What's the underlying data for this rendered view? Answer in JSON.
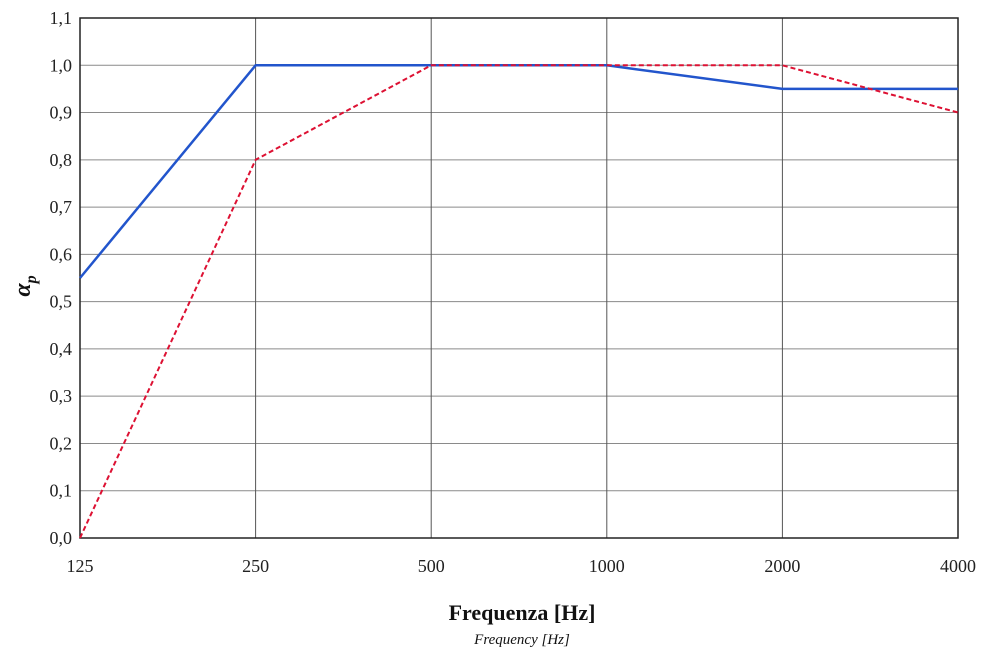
{
  "chart_data": {
    "type": "line",
    "title": "",
    "xlabel": "Frequenza [Hz]",
    "xlabel_sub": "Frequency [Hz]",
    "ylabel": "α",
    "ylabel_subscript": "p",
    "categories": [
      "125",
      "250",
      "500",
      "1000",
      "2000",
      "4000"
    ],
    "ylim": [
      0,
      1.1
    ],
    "yticks": [
      "0,0",
      "0,1",
      "0,2",
      "0,3",
      "0,4",
      "0,5",
      "0,6",
      "0,7",
      "0,8",
      "0,9",
      "1,0",
      "1,1"
    ],
    "grid": true,
    "legend": "none",
    "series": [
      {
        "values": [
          0.55,
          1.0,
          1.0,
          1.0,
          0.95,
          0.95
        ],
        "color": "#2255cc",
        "style": "solid"
      },
      {
        "values": [
          0.0,
          0.8,
          1.0,
          1.0,
          1.0,
          0.9
        ],
        "color": "#dd1133",
        "style": "dashed"
      }
    ]
  }
}
